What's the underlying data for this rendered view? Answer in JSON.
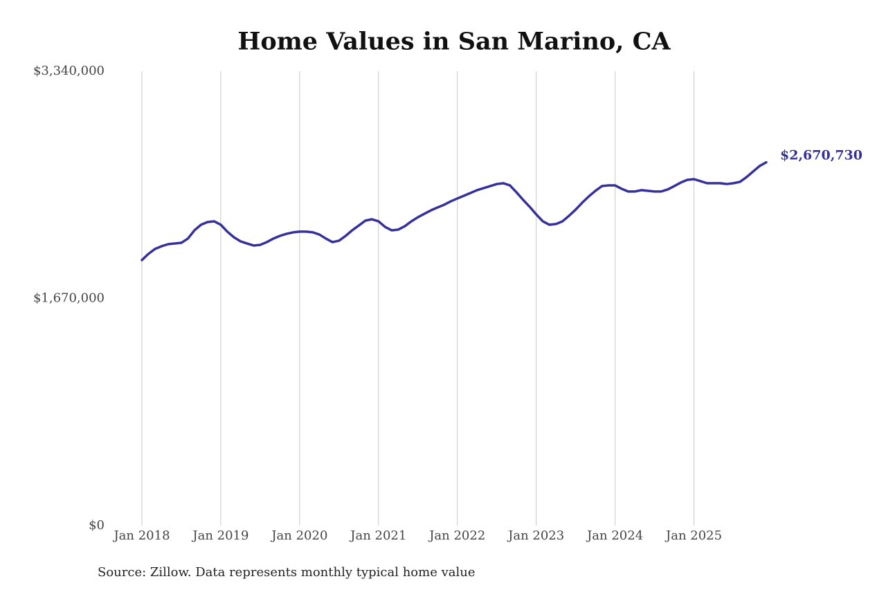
{
  "chart_data": {
    "type": "line",
    "title": "Home Values in San Marino, CA",
    "source": "Source: Zillow. Data represents monthly typical home value",
    "categories": [
      "Jan 2018",
      null,
      null,
      null,
      null,
      null,
      null,
      null,
      null,
      null,
      null,
      null,
      "Jan 2019",
      null,
      null,
      null,
      null,
      null,
      null,
      null,
      null,
      null,
      null,
      null,
      "Jan 2020",
      null,
      null,
      null,
      null,
      null,
      null,
      null,
      null,
      null,
      null,
      null,
      "Jan 2021",
      null,
      null,
      null,
      null,
      null,
      null,
      null,
      null,
      null,
      null,
      null,
      "Jan 2022",
      null,
      null,
      null,
      null,
      null,
      null,
      null,
      null,
      null,
      null,
      null,
      "Jan 2023",
      null,
      null,
      null,
      null,
      null,
      null,
      null,
      null,
      null,
      null,
      null,
      "Jan 2024",
      null,
      null,
      null,
      null,
      null,
      null,
      null,
      null,
      null,
      null,
      null,
      "Jan 2025",
      null,
      null,
      null,
      null,
      null,
      null,
      null,
      null,
      null,
      null,
      null
    ],
    "series": [
      {
        "name": "Home Value",
        "color": "#35309a",
        "values": [
          1952000,
          1998000,
          2034000,
          2054000,
          2069000,
          2074000,
          2079000,
          2110000,
          2171000,
          2212000,
          2232000,
          2237000,
          2212000,
          2161000,
          2120000,
          2090000,
          2074000,
          2059000,
          2064000,
          2084000,
          2110000,
          2130000,
          2145000,
          2156000,
          2161000,
          2161000,
          2156000,
          2140000,
          2110000,
          2084000,
          2095000,
          2130000,
          2171000,
          2206000,
          2242000,
          2252000,
          2237000,
          2196000,
          2171000,
          2176000,
          2201000,
          2237000,
          2267000,
          2293000,
          2318000,
          2339000,
          2359000,
          2384000,
          2405000,
          2425000,
          2445000,
          2466000,
          2481000,
          2496000,
          2511000,
          2517000,
          2501000,
          2450000,
          2395000,
          2344000,
          2288000,
          2237000,
          2212000,
          2217000,
          2237000,
          2278000,
          2323000,
          2374000,
          2420000,
          2461000,
          2496000,
          2501000,
          2501000,
          2476000,
          2456000,
          2456000,
          2466000,
          2461000,
          2456000,
          2456000,
          2471000,
          2496000,
          2522000,
          2542000,
          2547000,
          2532000,
          2517000,
          2517000,
          2517000,
          2511000,
          2517000,
          2527000,
          2562000,
          2603000,
          2644000,
          2670730
        ],
        "value_labels": [
          null,
          null,
          null,
          null,
          null,
          null,
          null,
          null,
          null,
          null,
          null,
          null,
          null,
          null,
          null,
          null,
          null,
          null,
          null,
          null,
          null,
          null,
          null,
          null,
          null,
          null,
          null,
          null,
          null,
          null,
          null,
          null,
          null,
          null,
          null,
          null,
          null,
          null,
          null,
          null,
          null,
          null,
          null,
          null,
          null,
          null,
          null,
          null,
          null,
          null,
          null,
          null,
          null,
          null,
          null,
          null,
          null,
          null,
          null,
          null,
          null,
          null,
          null,
          null,
          null,
          null,
          null,
          null,
          null,
          null,
          null,
          null,
          null,
          null,
          null,
          null,
          null,
          null,
          null,
          null,
          null,
          null,
          null,
          null,
          null,
          null,
          null,
          null,
          null,
          null,
          null,
          null,
          null,
          null,
          null,
          "$2,670,730"
        ]
      }
    ],
    "ylim": [
      0,
      3340000
    ],
    "yticks": [
      {
        "value": 0,
        "label": "$0"
      },
      {
        "value": 1670000,
        "label": "$1,670,000"
      },
      {
        "value": 3340000,
        "label": "$3,340,000"
      }
    ],
    "grid": true
  }
}
